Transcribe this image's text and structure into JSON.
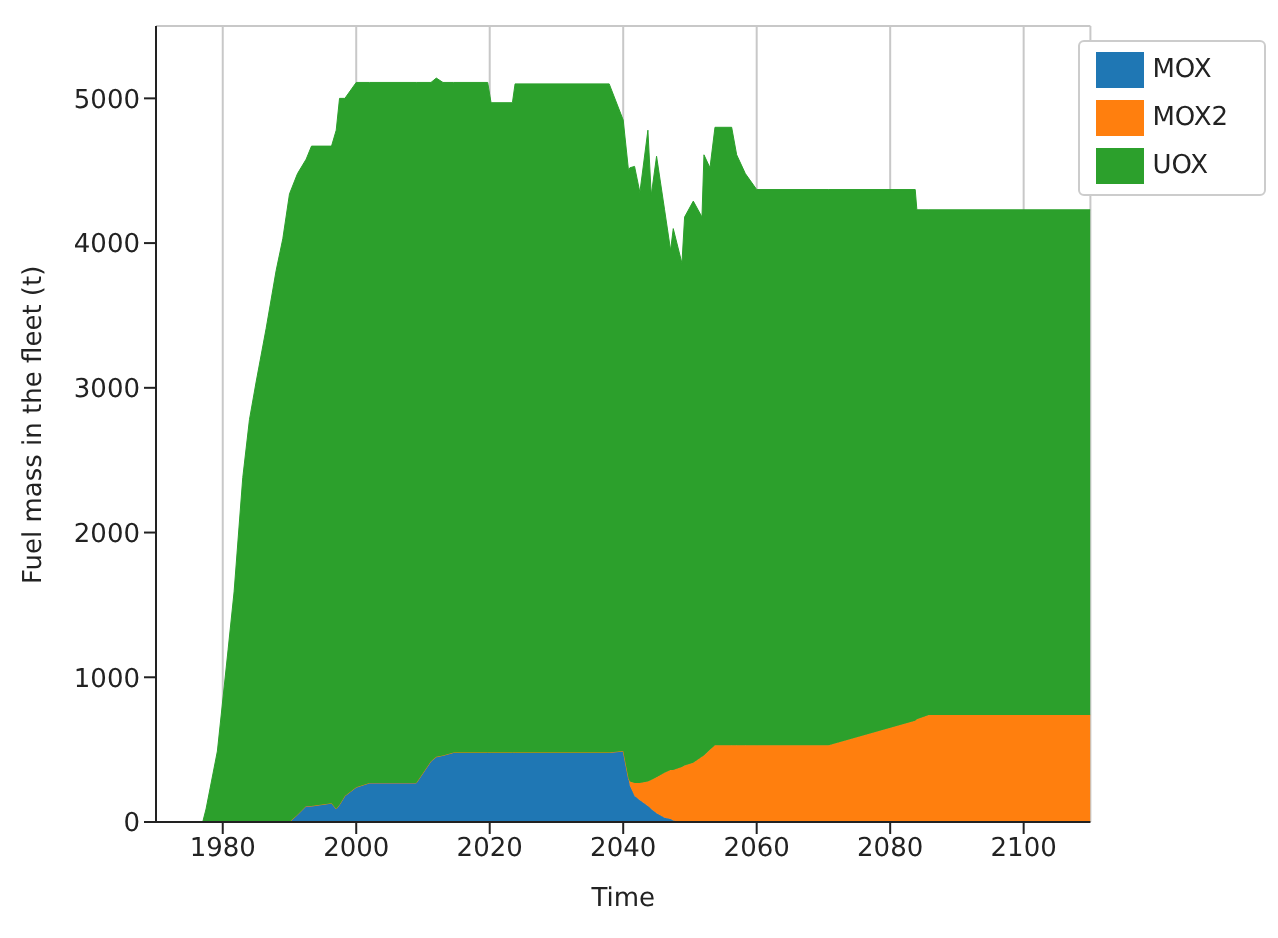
{
  "chart_data": {
    "type": "area",
    "stacked": true,
    "xlabel": "Time",
    "ylabel": "Fuel mass in the fleet (t)",
    "x": [
      1977,
      1977.5,
      1979.2,
      1980.8,
      1981.7,
      1983,
      1984,
      1985,
      1986.5,
      1988,
      1989,
      1990,
      1991.2,
      1992.5,
      1993.3,
      1996.3,
      1997,
      1997.5,
      1998.3,
      2000,
      2002,
      2009,
      2011.2,
      2012,
      2013,
      2014.6,
      2019.7,
      2020.2,
      2023.4,
      2023.8,
      2037.9,
      2040,
      2040.8,
      2041,
      2041.7,
      2042.5,
      2043.7,
      2044.2,
      2045,
      2046.2,
      2047.1,
      2047.5,
      2048.8,
      2049.2,
      2050.5,
      2051.8,
      2052.1,
      2053,
      2053.75,
      2056.25,
      2057,
      2058.3,
      2060,
      2070.8,
      2083.75,
      2084,
      2085.8,
      2110
    ],
    "series": [
      {
        "name": "MOX",
        "color": "#1f77b4",
        "values": [
          0,
          0,
          0,
          0,
          0,
          0,
          0,
          0,
          0,
          0,
          0,
          0,
          50,
          110,
          110,
          130,
          90,
          120,
          180,
          240,
          270,
          270,
          420,
          450,
          460,
          480,
          480,
          480,
          480,
          480,
          480,
          490,
          300,
          250,
          180,
          150,
          110,
          90,
          60,
          30,
          20,
          10,
          0,
          0,
          0,
          0,
          0,
          0,
          0,
          0,
          0,
          0,
          0,
          0,
          0,
          0,
          0,
          0
        ]
      },
      {
        "name": "MOX2",
        "color": "#ff7f0e",
        "values": [
          0,
          0,
          0,
          0,
          0,
          0,
          0,
          0,
          0,
          0,
          0,
          0,
          0,
          0,
          0,
          0,
          0,
          0,
          0,
          0,
          0,
          0,
          0,
          0,
          0,
          0,
          0,
          0,
          0,
          0,
          0,
          0,
          0,
          30,
          90,
          120,
          170,
          200,
          250,
          310,
          340,
          350,
          380,
          390,
          410,
          450,
          460,
          500,
          530,
          530,
          530,
          530,
          530,
          530,
          700,
          710,
          740,
          740
        ]
      },
      {
        "name": "UOX",
        "color": "#2ca02c",
        "values": [
          0,
          90,
          490,
          1190,
          1590,
          2380,
          2780,
          3040,
          3410,
          3810,
          4030,
          4340,
          4430,
          4470,
          4560,
          4540,
          4690,
          4880,
          4820,
          4870,
          4840,
          4840,
          4690,
          4690,
          4650,
          4630,
          4630,
          4490,
          4490,
          4620,
          4620,
          4360,
          4200,
          4240,
          4260,
          4080,
          4500,
          4040,
          4290,
          3890,
          3590,
          3740,
          3480,
          3790,
          3880,
          3730,
          4150,
          4020,
          4270,
          4270,
          4080,
          3950,
          3840,
          3840,
          3670,
          3520,
          3490,
          3490
        ]
      }
    ],
    "xlim": [
      1970,
      2110
    ],
    "xticks": [
      1980,
      2000,
      2020,
      2040,
      2060,
      2080,
      2100
    ],
    "ylim": [
      0,
      5500
    ],
    "yticks": [
      0,
      1000,
      2000,
      3000,
      4000,
      5000
    ],
    "grid": true,
    "legend": "top right"
  }
}
